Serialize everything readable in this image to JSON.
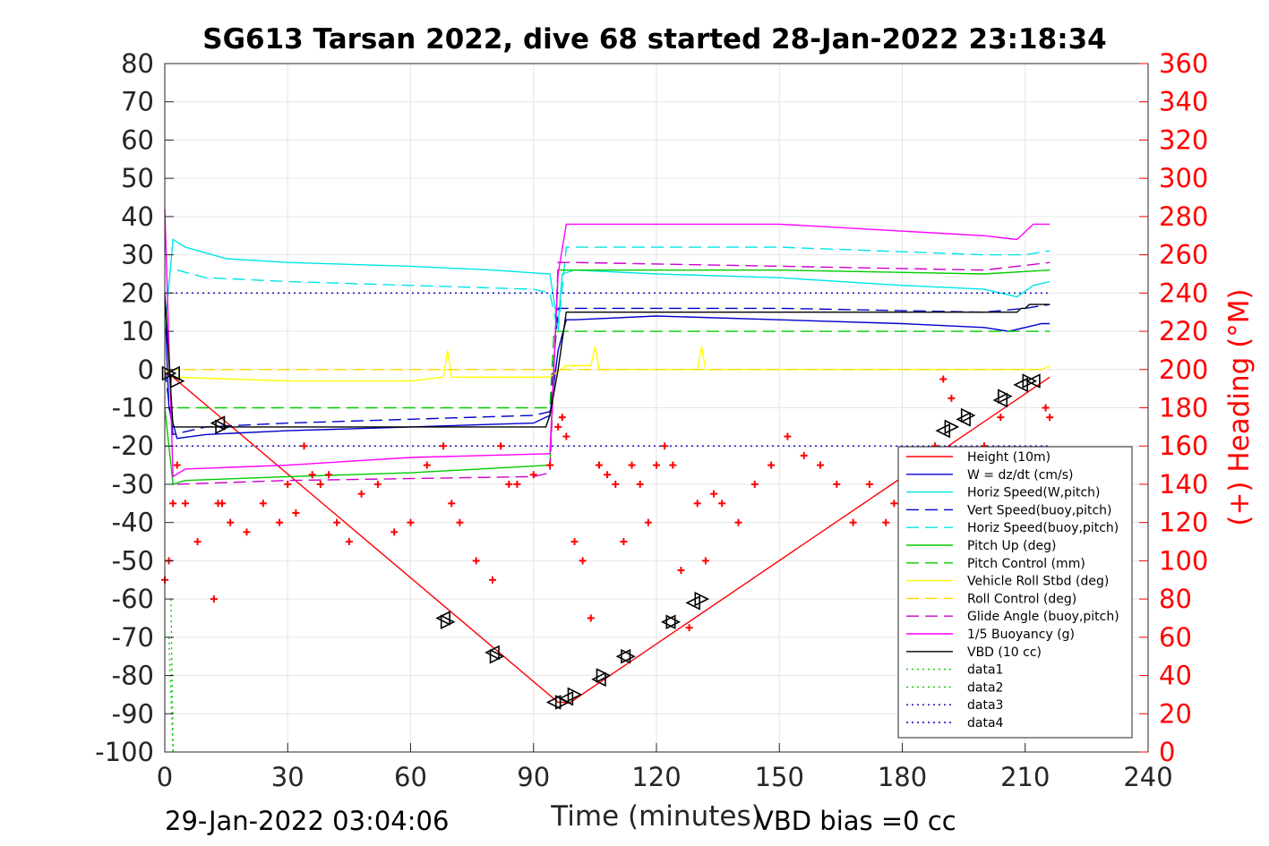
{
  "chart_data": {
    "type": "line",
    "title": "SG613 Tarsan 2022, dive 68 started 28-Jan-2022 23:18:34",
    "xlabel": "Time (minutes)",
    "ylabel_right": "(+) Heading (°M)",
    "xlim": [
      0,
      240
    ],
    "ylim": [
      -100,
      80
    ],
    "ylim_right": [
      0,
      360
    ],
    "x_ticks": [
      "0",
      "30",
      "60",
      "90",
      "120",
      "150",
      "180",
      "210",
      "240"
    ],
    "y_ticks": [
      "80",
      "70",
      "60",
      "50",
      "40",
      "30",
      "20",
      "10",
      "0",
      "-10",
      "-20",
      "-30",
      "-40",
      "-50",
      "-60",
      "-70",
      "-80",
      "-90",
      "-100"
    ],
    "y_ticks_right": [
      "360",
      "340",
      "320",
      "300",
      "280",
      "260",
      "240",
      "220",
      "200",
      "180",
      "160",
      "140",
      "120",
      "100",
      "80",
      "60",
      "40",
      "20",
      "0"
    ],
    "grid": true,
    "legend_position": "bottom-right inside",
    "footer_left": "29-Jan-2022 03:04:06",
    "footer_right": "VBD bias =0 cc",
    "series": [
      {
        "name": "Height (10m)",
        "color": "#ff0000",
        "style": "solid",
        "x": [
          0,
          2,
          96,
          99,
          216
        ],
        "y": [
          -1,
          -2,
          -87,
          -87,
          -2
        ]
      },
      {
        "name": "W = dz/dt (cm/s)",
        "color": "#0000cc",
        "style": "solid",
        "x": [
          0,
          1,
          3,
          10,
          30,
          60,
          90,
          94,
          96,
          98,
          100,
          120,
          150,
          180,
          200,
          206,
          210,
          214,
          216
        ],
        "y": [
          18,
          -10,
          -18,
          -17,
          -16,
          -15,
          -14,
          -12,
          5,
          13,
          13,
          14,
          13,
          12,
          11,
          10,
          11,
          12,
          12
        ]
      },
      {
        "name": "Horiz Speed(W,pitch)",
        "color": "#00e5e5",
        "style": "solid",
        "x": [
          0,
          2,
          5,
          15,
          30,
          60,
          80,
          94,
          95,
          96,
          97,
          100,
          120,
          150,
          180,
          200,
          208,
          212,
          216
        ],
        "y": [
          10,
          34,
          32,
          29,
          28,
          27,
          26,
          25,
          18,
          12,
          25,
          26,
          25,
          24,
          22,
          21,
          19,
          22,
          23
        ]
      },
      {
        "name": "Vert Speed(buoy,pitch)",
        "color": "#0000cc",
        "style": "dashed",
        "x": [
          0,
          2,
          10,
          30,
          60,
          90,
          94,
          96,
          100,
          150,
          200,
          210,
          216
        ],
        "y": [
          0,
          -17,
          -15,
          -14,
          -13,
          -12,
          -11,
          16,
          16,
          16,
          15,
          16,
          17
        ]
      },
      {
        "name": "Horiz Speed(buoy,pitch)",
        "color": "#00e5e5",
        "style": "dashed",
        "x": [
          3,
          10,
          30,
          60,
          90,
          94,
          96,
          98,
          150,
          200,
          210,
          216
        ],
        "y": [
          26,
          24,
          23,
          22,
          21,
          20,
          10,
          32,
          32,
          30,
          30,
          31
        ]
      },
      {
        "name": "Pitch Up (deg)",
        "color": "#00cc00",
        "style": "solid",
        "x": [
          0,
          2,
          5,
          30,
          60,
          94,
          96,
          100,
          150,
          200,
          216
        ],
        "y": [
          -10,
          -30,
          -29,
          -28,
          -27,
          -25,
          26,
          26,
          26,
          25,
          26
        ]
      },
      {
        "name": "Pitch Control (mm)",
        "color": "#00cc00",
        "style": "dashed",
        "x": [
          3,
          94,
          95,
          100,
          216
        ],
        "y": [
          -10,
          -10,
          10,
          10,
          10
        ]
      },
      {
        "name": "Vehicle Roll Stbd (deg)",
        "color": "#ffff00",
        "style": "solid",
        "x": [
          0,
          2,
          30,
          60,
          68,
          69,
          70,
          94,
          98,
          104,
          105,
          106,
          120,
          130,
          131,
          132,
          150,
          190,
          205,
          214,
          216
        ],
        "y": [
          0,
          -2,
          -3,
          -3,
          -2,
          5,
          -2,
          -2,
          1,
          1,
          6,
          0,
          0,
          0,
          6,
          0,
          0,
          0,
          0,
          0,
          1
        ]
      },
      {
        "name": "Roll Control (deg)",
        "color": "#ffd700",
        "style": "dashed",
        "x": [
          0,
          216
        ],
        "y": [
          0,
          0
        ]
      },
      {
        "name": "Glide Angle (buoy,pitch)",
        "color": "#cc00cc",
        "style": "dashed",
        "x": [
          3,
          30,
          90,
          94,
          96,
          100,
          150,
          200,
          216
        ],
        "y": [
          -30,
          -29,
          -28,
          -27,
          28,
          28,
          27,
          26,
          28
        ]
      },
      {
        "name": "1/5 Buoyancy (g)",
        "color": "#ff00ff",
        "style": "solid",
        "x": [
          0,
          2,
          5,
          30,
          60,
          94,
          96,
          98,
          150,
          200,
          208,
          212,
          216
        ],
        "y": [
          42,
          -28,
          -26,
          -25,
          -23,
          -22,
          25,
          38,
          38,
          35,
          34,
          38,
          38
        ]
      },
      {
        "name": "VBD (10 cc)",
        "color": "#000000",
        "style": "solid",
        "x": [
          0,
          2,
          93,
          94,
          96,
          98,
          208,
          209,
          210,
          211,
          216
        ],
        "y": [
          20,
          -15,
          -15,
          -12,
          0,
          15,
          15,
          16,
          16,
          17,
          17
        ]
      },
      {
        "name": "data1",
        "color": "#00cc00",
        "style": "dotted",
        "x": [
          1,
          2
        ],
        "y": [
          -70,
          -100
        ]
      },
      {
        "name": "data2",
        "color": "#00cc00",
        "style": "dotted",
        "x": [
          1.5,
          2
        ],
        "y": [
          -60,
          -100
        ]
      },
      {
        "name": "data3",
        "color": "#0000cc",
        "style": "dotted",
        "x": [
          0,
          216
        ],
        "y": [
          -20,
          -20
        ]
      },
      {
        "name": "data4",
        "color": "#0000cc",
        "style": "dotted",
        "x": [
          0,
          216
        ],
        "y": [
          20,
          20
        ]
      }
    ],
    "heading_series": {
      "color": "#ff0000",
      "marker": "+",
      "axis": "right",
      "x": [
        0,
        1,
        2,
        3,
        5,
        8,
        12,
        13,
        14,
        16,
        20,
        24,
        28,
        30,
        32,
        34,
        36,
        38,
        40,
        42,
        45,
        48,
        52,
        56,
        60,
        64,
        68,
        70,
        72,
        76,
        80,
        82,
        84,
        86,
        90,
        94,
        96,
        97,
        98,
        100,
        102,
        104,
        106,
        108,
        110,
        112,
        114,
        116,
        118,
        120,
        122,
        124,
        126,
        128,
        130,
        132,
        134,
        136,
        140,
        144,
        148,
        152,
        156,
        160,
        164,
        168,
        172,
        176,
        178,
        180,
        184,
        188,
        190,
        192,
        194,
        196,
        198,
        200,
        204,
        208,
        212,
        215,
        216
      ],
      "y": [
        90,
        100,
        130,
        150,
        130,
        110,
        80,
        130,
        130,
        120,
        115,
        130,
        120,
        140,
        125,
        160,
        145,
        140,
        145,
        120,
        110,
        135,
        140,
        115,
        120,
        150,
        160,
        130,
        120,
        100,
        90,
        160,
        140,
        140,
        145,
        150,
        170,
        175,
        165,
        110,
        100,
        70,
        150,
        145,
        140,
        110,
        150,
        140,
        120,
        150,
        160,
        150,
        95,
        65,
        130,
        100,
        135,
        130,
        120,
        140,
        150,
        165,
        155,
        150,
        140,
        120,
        140,
        120,
        130,
        135,
        120,
        160,
        195,
        185,
        140,
        150,
        140,
        160,
        175,
        140,
        130,
        180,
        175
      ]
    },
    "markers": [
      {
        "x": 1,
        "y": -1
      },
      {
        "x": 2,
        "y": -1
      },
      {
        "x": 3,
        "y": -3
      },
      {
        "x": 13,
        "y": -14
      },
      {
        "x": 14,
        "y": -15
      },
      {
        "x": 68,
        "y": -65
      },
      {
        "x": 69,
        "y": -66
      },
      {
        "x": 80,
        "y": -74
      },
      {
        "x": 81,
        "y": -75
      },
      {
        "x": 95,
        "y": -87
      },
      {
        "x": 97,
        "y": -87
      },
      {
        "x": 98,
        "y": -86
      },
      {
        "x": 100,
        "y": -85
      },
      {
        "x": 106,
        "y": -81
      },
      {
        "x": 107,
        "y": -80
      },
      {
        "x": 112,
        "y": -75
      },
      {
        "x": 113,
        "y": -75
      },
      {
        "x": 123,
        "y": -66
      },
      {
        "x": 124,
        "y": -66
      },
      {
        "x": 129,
        "y": -61
      },
      {
        "x": 131,
        "y": -60
      },
      {
        "x": 190,
        "y": -16
      },
      {
        "x": 192,
        "y": -15
      },
      {
        "x": 195,
        "y": -13
      },
      {
        "x": 196,
        "y": -12
      },
      {
        "x": 204,
        "y": -8
      },
      {
        "x": 205,
        "y": -7
      },
      {
        "x": 209,
        "y": -4
      },
      {
        "x": 211,
        "y": -3
      },
      {
        "x": 212,
        "y": -3
      }
    ]
  }
}
